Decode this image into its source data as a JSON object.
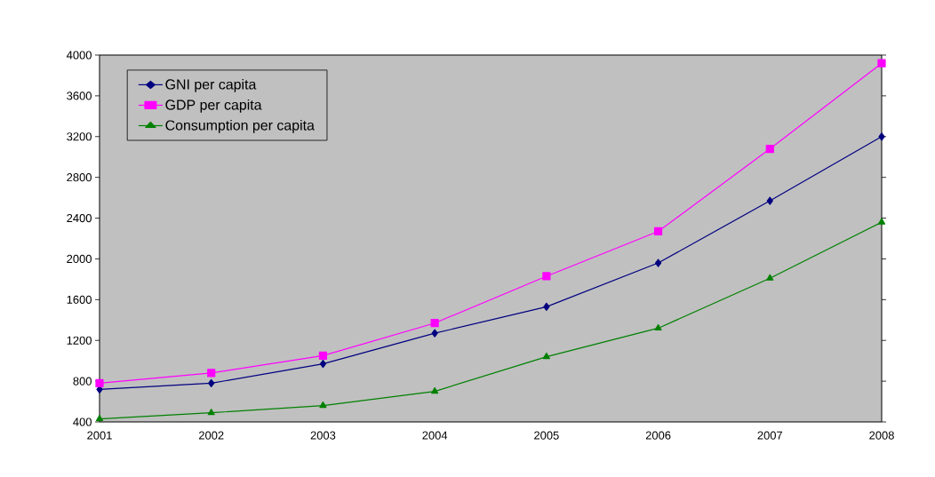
{
  "chart_data": {
    "type": "line",
    "categories": [
      "2001",
      "2002",
      "2003",
      "2004",
      "2005",
      "2006",
      "2007",
      "2008"
    ],
    "series": [
      {
        "name": "GNI per capita",
        "color": "#000080",
        "marker": "diamond",
        "values": [
          720,
          780,
          970,
          1270,
          1530,
          1960,
          2570,
          3200
        ]
      },
      {
        "name": "GDP per capita",
        "color": "#ff00ff",
        "marker": "square",
        "values": [
          780,
          880,
          1050,
          1370,
          1830,
          2270,
          3080,
          3920
        ]
      },
      {
        "name": "Consumption per capita",
        "color": "#008000",
        "marker": "triangle",
        "values": [
          430,
          490,
          560,
          700,
          1040,
          1320,
          1810,
          2360
        ]
      }
    ],
    "ylim": [
      400,
      4000
    ],
    "yticks": [
      400,
      800,
      1200,
      1600,
      2000,
      2400,
      2800,
      3200,
      3600,
      4000
    ],
    "grid": false,
    "legend": "top left",
    "line_style": "solid"
  }
}
